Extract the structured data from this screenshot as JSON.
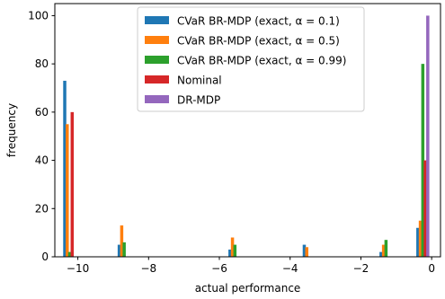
{
  "chart_data": {
    "type": "bar",
    "xlabel": "actual performance",
    "ylabel": "frequency",
    "xlim": [
      -10.65,
      0.25
    ],
    "ylim": [
      0,
      105
    ],
    "xticks": [
      -10,
      -8,
      -6,
      -4,
      -2,
      0
    ],
    "xtick_labels": [
      "−10",
      "−8",
      "−6",
      "−4",
      "−2",
      "0"
    ],
    "yticks": [
      0,
      20,
      40,
      60,
      80,
      100
    ],
    "ytick_labels": [
      "0",
      "20",
      "40",
      "60",
      "80",
      "100"
    ],
    "grid": false,
    "legend_position": "top-center",
    "series": [
      {
        "name": "CVaR BR-MDP (exact, α = 0.1)",
        "color": "#1f77b4",
        "points": [
          [
            -10.37,
            73
          ],
          [
            -8.83,
            5
          ],
          [
            -5.7,
            3
          ],
          [
            -3.6,
            5
          ],
          [
            -1.43,
            2
          ],
          [
            -0.39,
            12
          ]
        ]
      },
      {
        "name": "CVaR BR-MDP (exact, α = 0.5)",
        "color": "#ff7f0e",
        "points": [
          [
            -10.3,
            55
          ],
          [
            -8.76,
            13
          ],
          [
            -5.63,
            8
          ],
          [
            -3.53,
            4
          ],
          [
            -1.36,
            5
          ],
          [
            -0.32,
            15
          ]
        ]
      },
      {
        "name": "CVaR BR-MDP (exact, α = 0.99)",
        "color": "#2ca02c",
        "points": [
          [
            -10.23,
            2
          ],
          [
            -8.69,
            6
          ],
          [
            -5.56,
            5
          ],
          [
            -1.29,
            7
          ],
          [
            -0.25,
            80
          ]
        ]
      },
      {
        "name": "Nominal",
        "color": "#d62728",
        "points": [
          [
            -10.16,
            60
          ],
          [
            -0.18,
            40
          ]
        ]
      },
      {
        "name": "DR-MDP",
        "color": "#9467bd",
        "points": [
          [
            -0.11,
            100
          ]
        ]
      }
    ]
  }
}
